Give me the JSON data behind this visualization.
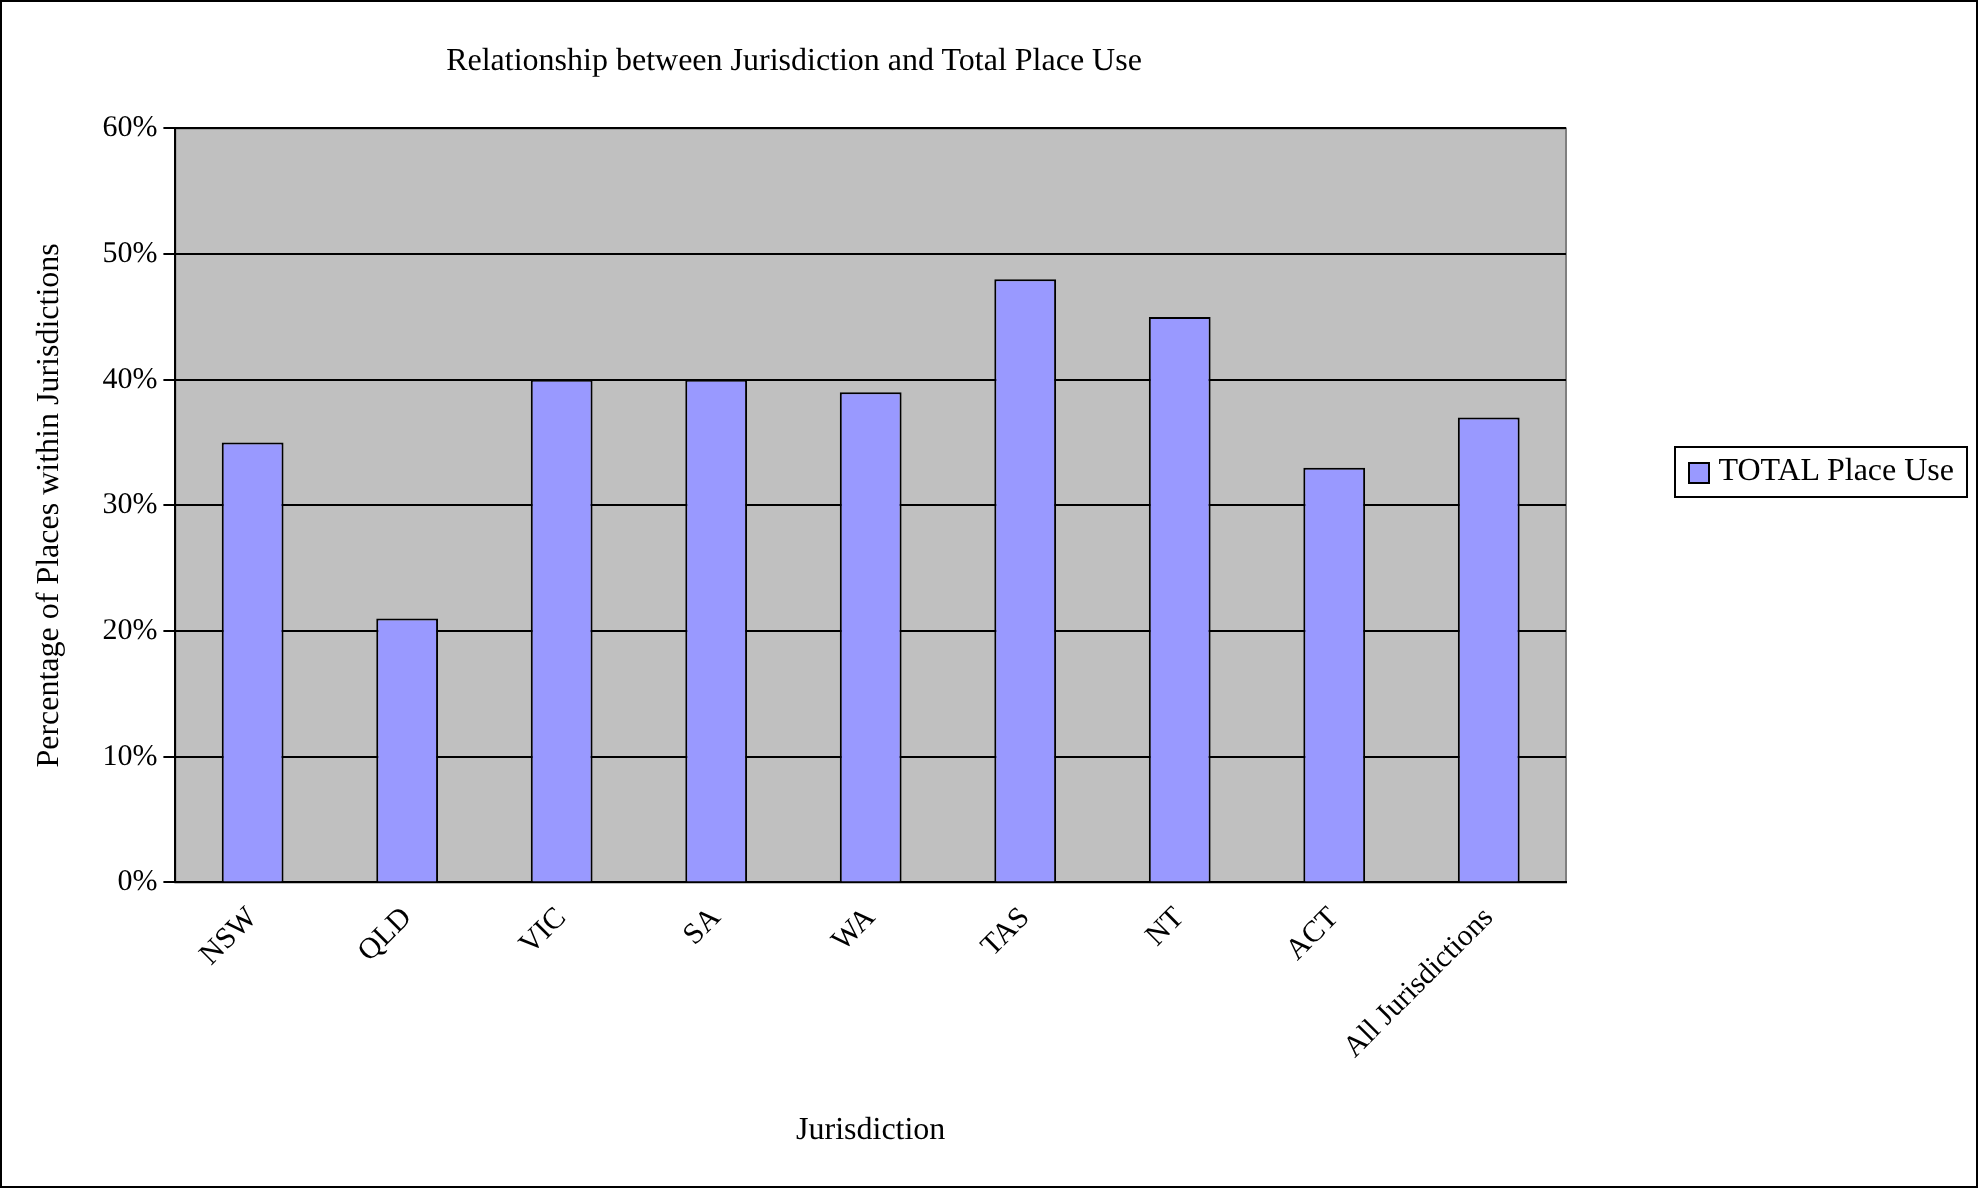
{
  "chart_data": {
    "type": "bar",
    "title": "Relationship between Jurisdiction and Total Place Use",
    "xlabel": "Jurisdiction",
    "ylabel": "Percentage of Places within Jurisdictions",
    "categories": [
      "NSW",
      "QLD",
      "VIC",
      "SA",
      "WA",
      "TAS",
      "NT",
      "ACT",
      "All Jurisdictions"
    ],
    "series": [
      {
        "name": "TOTAL Place Use",
        "color": "#9999ff",
        "values": [
          35,
          21,
          40,
          40,
          39,
          48,
          45,
          33,
          37
        ]
      }
    ],
    "ylim": [
      0,
      60
    ],
    "yticks": [
      {
        "value": 0,
        "label": "0%"
      },
      {
        "value": 10,
        "label": "10%"
      },
      {
        "value": 20,
        "label": "20%"
      },
      {
        "value": 30,
        "label": "30%"
      },
      {
        "value": 40,
        "label": "40%"
      },
      {
        "value": 50,
        "label": "50%"
      },
      {
        "value": 60,
        "label": "60%"
      }
    ],
    "grid": "y",
    "legend": "right"
  }
}
